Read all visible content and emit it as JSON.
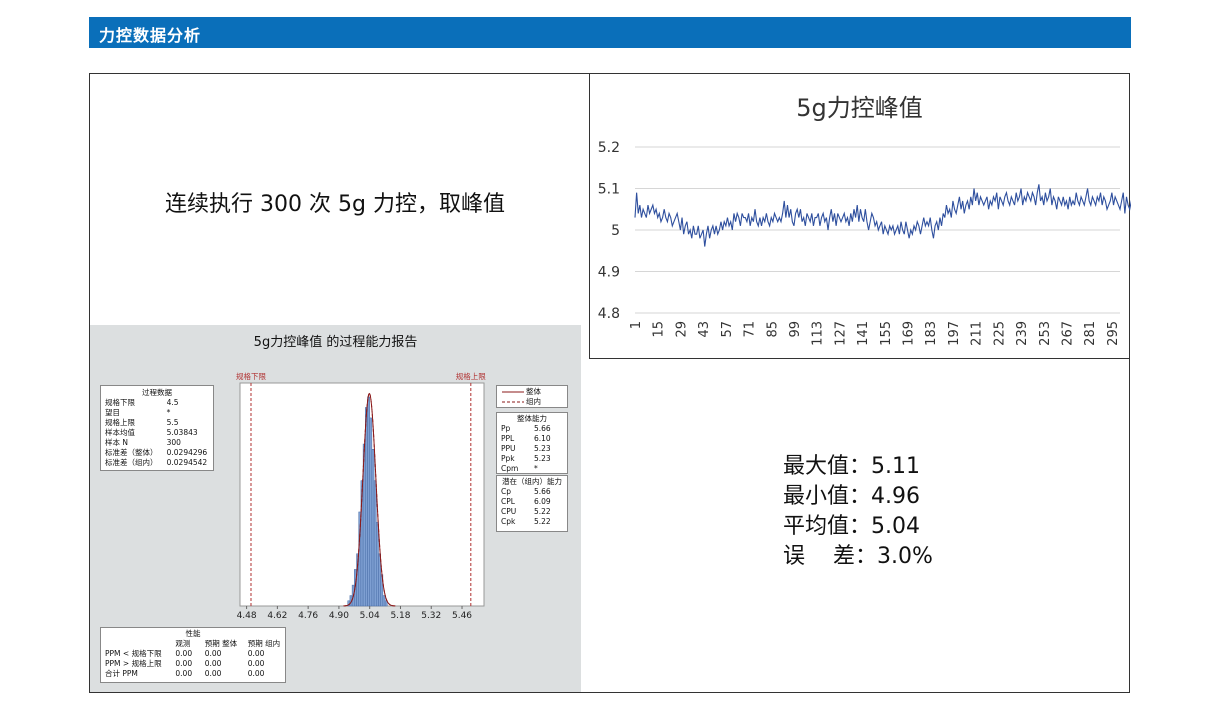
{
  "header": {
    "title": "力控数据分析"
  },
  "description": "连续执行 300 次 5g 力控，取峰值",
  "summary": [
    "最大值：5.11",
    "最小值：4.96",
    "平均值：5.04",
    "误    差：3.0%"
  ],
  "colors": {
    "header": "#0a6fba",
    "line": "#2e4f9e",
    "bar": "#7e9fd2",
    "fit": "#8b1a1a",
    "spec": "#b03030"
  },
  "chart_data": [
    {
      "type": "line",
      "title": "5g力控峰值",
      "ylim": [
        4.8,
        5.2
      ],
      "yticks": [
        "5.2",
        "5.1",
        "5",
        "4.9",
        "4.8"
      ],
      "ytick_values": [
        5.2,
        5.1,
        5.0,
        4.9,
        4.8
      ],
      "xticks": [
        "1",
        "15",
        "29",
        "43",
        "57",
        "71",
        "85",
        "99",
        "113",
        "127",
        "141",
        "155",
        "169",
        "183",
        "197",
        "211",
        "225",
        "239",
        "253",
        "267",
        "281",
        "295"
      ],
      "x_range": [
        1,
        300
      ],
      "grid": true,
      "series": [
        {
          "values": [
            5.03,
            5.09,
            5.04,
            5.06,
            5.03,
            5.05,
            5.04,
            5.03,
            5.06,
            5.04,
            5.05,
            5.06,
            5.04,
            5.05,
            5.03,
            5.04,
            5.02,
            5.03,
            5.05,
            5.03,
            5.02,
            5.04,
            5.03,
            5.01,
            5.02,
            5.03,
            5.04,
            5.02,
            5.0,
            5.03,
            4.99,
            5.01,
            5.02,
            4.99,
            5.0,
            4.98,
            5.01,
            4.99,
            4.99,
            5.01,
            4.98,
            4.99,
            5.0,
            4.96,
            4.99,
            5.01,
            4.98,
            5.0,
            5.01,
            4.99,
            5.01,
            4.99,
            5.0,
            5.02,
            5.0,
            5.02,
            5.01,
            5.03,
            5.01,
            5.02,
            5.0,
            5.04,
            5.02,
            5.04,
            5.03,
            5.01,
            5.04,
            5.03,
            5.03,
            5.02,
            5.04,
            5.01,
            5.03,
            5.02,
            5.05,
            5.02,
            5.01,
            5.03,
            5.01,
            5.03,
            5.02,
            5.04,
            5.02,
            5.01,
            5.03,
            5.02,
            5.04,
            5.03,
            5.02,
            5.03,
            5.02,
            5.04,
            5.07,
            5.03,
            5.06,
            5.03,
            5.05,
            5.02,
            5.01,
            5.04,
            5.05,
            5.03,
            5.05,
            5.02,
            5.03,
            5.01,
            5.04,
            5.03,
            5.02,
            5.04,
            5.01,
            5.03,
            5.03,
            5.04,
            5.01,
            5.03,
            5.04,
            5.02,
            5.03,
            5.0,
            5.03,
            5.05,
            5.02,
            5.04,
            5.01,
            5.04,
            5.03,
            5.02,
            5.03,
            5.04,
            5.02,
            5.03,
            5.01,
            5.04,
            5.02,
            5.05,
            5.03,
            5.06,
            5.02,
            5.05,
            5.03,
            5.02,
            5.05,
            5.02,
            5.0,
            5.02,
            5.04,
            5.03,
            5.01,
            5.02,
            5.0,
            5.01,
            5.02,
            4.99,
            5.01,
            5.0,
            4.99,
            5.01,
            5.0,
            5.01,
            4.99,
            5.0,
            5.01,
            4.99,
            5.02,
            5.0,
            4.99,
            5.02,
            5.0,
            4.98,
            5.0,
            4.99,
            5.01,
            5.0,
            5.02,
            5.01,
            4.99,
            5.01,
            5.03,
            5.01,
            5.02,
            5.01,
            5.03,
            5.0,
            4.98,
            5.01,
            5.02,
            5.0,
            5.03,
            5.01,
            5.04,
            5.03,
            5.06,
            5.04,
            5.05,
            5.03,
            5.07,
            5.05,
            5.04,
            5.06,
            5.08,
            5.05,
            5.07,
            5.04,
            5.06,
            5.07,
            5.05,
            5.08,
            5.06,
            5.1,
            5.07,
            5.09,
            5.06,
            5.08,
            5.07,
            5.06,
            5.07,
            5.08,
            5.05,
            5.07,
            5.06,
            5.08,
            5.07,
            5.09,
            5.05,
            5.08,
            5.07,
            5.06,
            5.08,
            5.09,
            5.07,
            5.06,
            5.08,
            5.07,
            5.06,
            5.09,
            5.07,
            5.08,
            5.1,
            5.06,
            5.08,
            5.07,
            5.09,
            5.08,
            5.07,
            5.09,
            5.08,
            5.06,
            5.09,
            5.11,
            5.07,
            5.08,
            5.06,
            5.09,
            5.07,
            5.08,
            5.1,
            5.06,
            5.08,
            5.07,
            5.05,
            5.08,
            5.07,
            5.06,
            5.08,
            5.06,
            5.07,
            5.05,
            5.08,
            5.06,
            5.07,
            5.06,
            5.09,
            5.07,
            5.06,
            5.08,
            5.07,
            5.06,
            5.08,
            5.1,
            5.07,
            5.06,
            5.08,
            5.07,
            5.06,
            5.08,
            5.07,
            5.09,
            5.06,
            5.08,
            5.07,
            5.05,
            5.06,
            5.07,
            5.09,
            5.06,
            5.08,
            5.07,
            5.06,
            5.05,
            5.07,
            5.09,
            5.04,
            5.08,
            5.06,
            5.05,
            5.07,
            5.06,
            5.06,
            5.07
          ]
        }
      ]
    },
    {
      "type": "bar",
      "title": "5g力控峰值 的过程能力报告",
      "xticks": [
        "4.48",
        "4.62",
        "4.76",
        "4.90",
        "5.04",
        "5.18",
        "5.32",
        "5.46"
      ],
      "xtick_values": [
        4.48,
        4.62,
        4.76,
        4.9,
        5.04,
        5.18,
        5.32,
        5.46
      ],
      "xlim": [
        4.45,
        5.56
      ],
      "bins": [
        4.945,
        4.955,
        4.965,
        4.975,
        4.985,
        4.995,
        5.005,
        5.015,
        5.025,
        5.035,
        5.045,
        5.055,
        5.065,
        5.075,
        5.085,
        5.095,
        5.105,
        5.115
      ],
      "counts": [
        1,
        2,
        4,
        7,
        10,
        18,
        24,
        31,
        38,
        40,
        36,
        30,
        24,
        16,
        10,
        6,
        2,
        1
      ],
      "mean": 5.03843,
      "sigma": 0.0294296,
      "spec_lines": [
        {
          "label": "规格下限",
          "value": 4.5
        },
        {
          "label": "规格上限",
          "value": 5.5
        }
      ],
      "legend": [
        "整体",
        "组内"
      ],
      "process_data": {
        "title": "过程数据",
        "rows": [
          [
            "规格下限",
            "4.5"
          ],
          [
            "望目",
            "*"
          ],
          [
            "规格上限",
            "5.5"
          ],
          [
            "样本均值",
            "5.03843"
          ],
          [
            "样本 N",
            "300"
          ],
          [
            "标准差（整体）",
            "0.0294296"
          ],
          [
            "标准差（组内）",
            "0.0294542"
          ]
        ]
      },
      "overall_capability": {
        "title": "整体能力",
        "rows": [
          [
            "Pp",
            "5.66"
          ],
          [
            "PPL",
            "6.10"
          ],
          [
            "PPU",
            "5.23"
          ],
          [
            "Ppk",
            "5.23"
          ],
          [
            "Cpm",
            "*"
          ]
        ]
      },
      "potential_capability": {
        "title": "潜在（组内）能力",
        "rows": [
          [
            "Cp",
            "5.66"
          ],
          [
            "CPL",
            "6.09"
          ],
          [
            "CPU",
            "5.22"
          ],
          [
            "Cpk",
            "5.22"
          ]
        ]
      },
      "performance": {
        "title": "性能",
        "columns": [
          "",
          "观测",
          "预期 整体",
          "预期 组内"
        ],
        "rows": [
          [
            "PPM < 规格下限",
            "0.00",
            "0.00",
            "0.00"
          ],
          [
            "PPM > 规格上限",
            "0.00",
            "0.00",
            "0.00"
          ],
          [
            "合计 PPM",
            "0.00",
            "0.00",
            "0.00"
          ]
        ]
      }
    }
  ]
}
